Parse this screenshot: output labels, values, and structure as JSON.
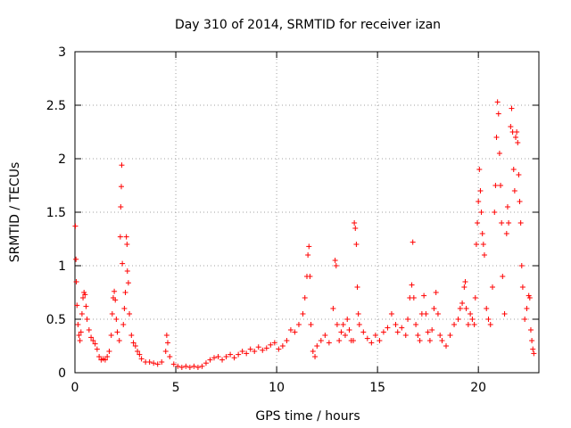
{
  "chart_data": {
    "type": "scatter",
    "title": "Day 310 of 2014, SRMTID for receiver izan",
    "xlabel": "GPS time / hours",
    "ylabel": "SRMTID / TECUs",
    "xlim": [
      0,
      23
    ],
    "ylim": [
      0,
      3
    ],
    "x_ticks": [
      0,
      5,
      10,
      15,
      20
    ],
    "x_tick_labels": [
      "0",
      "5",
      "10",
      "15",
      "20"
    ],
    "y_ticks": [
      0,
      0.5,
      1,
      1.5,
      2,
      2.5,
      3
    ],
    "y_tick_labels": [
      "0",
      "0.5",
      "1",
      "1.5",
      "2",
      "2.5",
      "3"
    ],
    "grid": true,
    "marker": "plus",
    "marker_color": "#ff0000",
    "series": [
      {
        "name": "SRMTID",
        "points": [
          [
            0.02,
            1.37
          ],
          [
            0.05,
            1.06
          ],
          [
            0.07,
            0.85
          ],
          [
            0.1,
            0.63
          ],
          [
            0.15,
            0.45
          ],
          [
            0.2,
            0.35
          ],
          [
            0.25,
            0.3
          ],
          [
            0.3,
            0.38
          ],
          [
            0.35,
            0.55
          ],
          [
            0.4,
            0.7
          ],
          [
            0.45,
            0.75
          ],
          [
            0.5,
            0.73
          ],
          [
            0.55,
            0.62
          ],
          [
            0.6,
            0.5
          ],
          [
            0.7,
            0.4
          ],
          [
            0.8,
            0.33
          ],
          [
            0.9,
            0.3
          ],
          [
            1.0,
            0.27
          ],
          [
            1.1,
            0.22
          ],
          [
            1.2,
            0.15
          ],
          [
            1.3,
            0.12
          ],
          [
            1.4,
            0.13
          ],
          [
            1.5,
            0.12
          ],
          [
            1.6,
            0.15
          ],
          [
            1.7,
            0.2
          ],
          [
            1.8,
            0.35
          ],
          [
            1.85,
            0.55
          ],
          [
            1.9,
            0.7
          ],
          [
            1.95,
            0.76
          ],
          [
            2.0,
            0.68
          ],
          [
            2.05,
            0.5
          ],
          [
            2.1,
            0.38
          ],
          [
            2.2,
            0.3
          ],
          [
            2.25,
            1.27
          ],
          [
            2.27,
            1.55
          ],
          [
            2.3,
            1.74
          ],
          [
            2.32,
            1.94
          ],
          [
            2.35,
            1.02
          ],
          [
            2.4,
            0.45
          ],
          [
            2.45,
            0.6
          ],
          [
            2.5,
            0.75
          ],
          [
            2.55,
            1.27
          ],
          [
            2.58,
            1.2
          ],
          [
            2.6,
            0.95
          ],
          [
            2.65,
            0.84
          ],
          [
            2.7,
            0.55
          ],
          [
            2.8,
            0.35
          ],
          [
            2.9,
            0.28
          ],
          [
            3.0,
            0.25
          ],
          [
            3.1,
            0.2
          ],
          [
            3.2,
            0.17
          ],
          [
            3.3,
            0.13
          ],
          [
            3.5,
            0.1
          ],
          [
            3.7,
            0.1
          ],
          [
            3.9,
            0.09
          ],
          [
            4.1,
            0.08
          ],
          [
            4.3,
            0.1
          ],
          [
            4.5,
            0.2
          ],
          [
            4.55,
            0.35
          ],
          [
            4.6,
            0.28
          ],
          [
            4.7,
            0.15
          ],
          [
            4.9,
            0.08
          ],
          [
            5.1,
            0.06
          ],
          [
            5.3,
            0.05
          ],
          [
            5.5,
            0.06
          ],
          [
            5.7,
            0.05
          ],
          [
            5.9,
            0.06
          ],
          [
            6.1,
            0.05
          ],
          [
            6.3,
            0.06
          ],
          [
            6.5,
            0.09
          ],
          [
            6.7,
            0.12
          ],
          [
            6.9,
            0.14
          ],
          [
            7.1,
            0.15
          ],
          [
            7.3,
            0.12
          ],
          [
            7.5,
            0.15
          ],
          [
            7.7,
            0.17
          ],
          [
            7.9,
            0.14
          ],
          [
            8.1,
            0.17
          ],
          [
            8.3,
            0.2
          ],
          [
            8.5,
            0.18
          ],
          [
            8.7,
            0.22
          ],
          [
            8.9,
            0.2
          ],
          [
            9.1,
            0.24
          ],
          [
            9.3,
            0.21
          ],
          [
            9.5,
            0.23
          ],
          [
            9.7,
            0.26
          ],
          [
            9.9,
            0.28
          ],
          [
            10.1,
            0.22
          ],
          [
            10.3,
            0.25
          ],
          [
            10.5,
            0.3
          ],
          [
            10.7,
            0.4
          ],
          [
            10.9,
            0.38
          ],
          [
            11.1,
            0.45
          ],
          [
            11.3,
            0.55
          ],
          [
            11.4,
            0.7
          ],
          [
            11.5,
            0.9
          ],
          [
            11.55,
            1.1
          ],
          [
            11.6,
            1.18
          ],
          [
            11.65,
            0.9
          ],
          [
            11.7,
            0.45
          ],
          [
            11.8,
            0.2
          ],
          [
            11.9,
            0.15
          ],
          [
            12.0,
            0.25
          ],
          [
            12.2,
            0.3
          ],
          [
            12.4,
            0.35
          ],
          [
            12.6,
            0.28
          ],
          [
            12.8,
            0.6
          ],
          [
            12.9,
            1.05
          ],
          [
            12.95,
            1.0
          ],
          [
            13.0,
            0.45
          ],
          [
            13.1,
            0.3
          ],
          [
            13.2,
            0.38
          ],
          [
            13.3,
            0.45
          ],
          [
            13.4,
            0.35
          ],
          [
            13.5,
            0.5
          ],
          [
            13.6,
            0.4
          ],
          [
            13.7,
            0.3
          ],
          [
            13.8,
            0.3
          ],
          [
            13.85,
            1.4
          ],
          [
            13.9,
            1.35
          ],
          [
            13.95,
            1.2
          ],
          [
            14.0,
            0.8
          ],
          [
            14.05,
            0.55
          ],
          [
            14.1,
            0.45
          ],
          [
            14.3,
            0.38
          ],
          [
            14.5,
            0.32
          ],
          [
            14.7,
            0.28
          ],
          [
            14.9,
            0.35
          ],
          [
            15.1,
            0.3
          ],
          [
            15.3,
            0.38
          ],
          [
            15.5,
            0.42
          ],
          [
            15.7,
            0.55
          ],
          [
            15.9,
            0.45
          ],
          [
            16.0,
            0.38
          ],
          [
            16.2,
            0.42
          ],
          [
            16.4,
            0.35
          ],
          [
            16.5,
            0.5
          ],
          [
            16.6,
            0.7
          ],
          [
            16.7,
            0.82
          ],
          [
            16.75,
            1.22
          ],
          [
            16.8,
            0.7
          ],
          [
            16.9,
            0.45
          ],
          [
            17.0,
            0.35
          ],
          [
            17.1,
            0.3
          ],
          [
            17.2,
            0.55
          ],
          [
            17.3,
            0.72
          ],
          [
            17.4,
            0.55
          ],
          [
            17.5,
            0.38
          ],
          [
            17.6,
            0.3
          ],
          [
            17.7,
            0.4
          ],
          [
            17.8,
            0.6
          ],
          [
            17.9,
            0.75
          ],
          [
            18.0,
            0.55
          ],
          [
            18.1,
            0.35
          ],
          [
            18.2,
            0.3
          ],
          [
            18.4,
            0.25
          ],
          [
            18.6,
            0.35
          ],
          [
            18.8,
            0.45
          ],
          [
            19.0,
            0.5
          ],
          [
            19.1,
            0.6
          ],
          [
            19.2,
            0.65
          ],
          [
            19.3,
            0.8
          ],
          [
            19.35,
            0.85
          ],
          [
            19.4,
            0.6
          ],
          [
            19.5,
            0.45
          ],
          [
            19.6,
            0.55
          ],
          [
            19.7,
            0.5
          ],
          [
            19.8,
            0.45
          ],
          [
            19.85,
            0.7
          ],
          [
            19.9,
            1.2
          ],
          [
            19.95,
            1.4
          ],
          [
            20.0,
            1.6
          ],
          [
            20.05,
            1.9
          ],
          [
            20.1,
            1.7
          ],
          [
            20.15,
            1.5
          ],
          [
            20.2,
            1.3
          ],
          [
            20.25,
            1.2
          ],
          [
            20.3,
            1.1
          ],
          [
            20.4,
            0.6
          ],
          [
            20.5,
            0.5
          ],
          [
            20.6,
            0.45
          ],
          [
            20.7,
            0.8
          ],
          [
            20.8,
            1.5
          ],
          [
            20.85,
            1.75
          ],
          [
            20.9,
            2.2
          ],
          [
            20.95,
            2.53
          ],
          [
            21.0,
            2.42
          ],
          [
            21.05,
            2.05
          ],
          [
            21.1,
            1.75
          ],
          [
            21.15,
            1.4
          ],
          [
            21.2,
            0.9
          ],
          [
            21.3,
            0.55
          ],
          [
            21.4,
            1.3
          ],
          [
            21.45,
            1.55
          ],
          [
            21.5,
            1.4
          ],
          [
            21.6,
            2.3
          ],
          [
            21.65,
            2.47
          ],
          [
            21.7,
            2.25
          ],
          [
            21.75,
            1.9
          ],
          [
            21.8,
            1.7
          ],
          [
            21.85,
            2.2
          ],
          [
            21.9,
            2.25
          ],
          [
            21.95,
            2.15
          ],
          [
            22.0,
            1.85
          ],
          [
            22.05,
            1.6
          ],
          [
            22.1,
            1.4
          ],
          [
            22.15,
            1.0
          ],
          [
            22.2,
            0.8
          ],
          [
            22.3,
            0.5
          ],
          [
            22.4,
            0.6
          ],
          [
            22.5,
            0.72
          ],
          [
            22.55,
            0.7
          ],
          [
            22.6,
            0.4
          ],
          [
            22.65,
            0.3
          ],
          [
            22.7,
            0.22
          ],
          [
            22.75,
            0.18
          ]
        ]
      }
    ]
  }
}
